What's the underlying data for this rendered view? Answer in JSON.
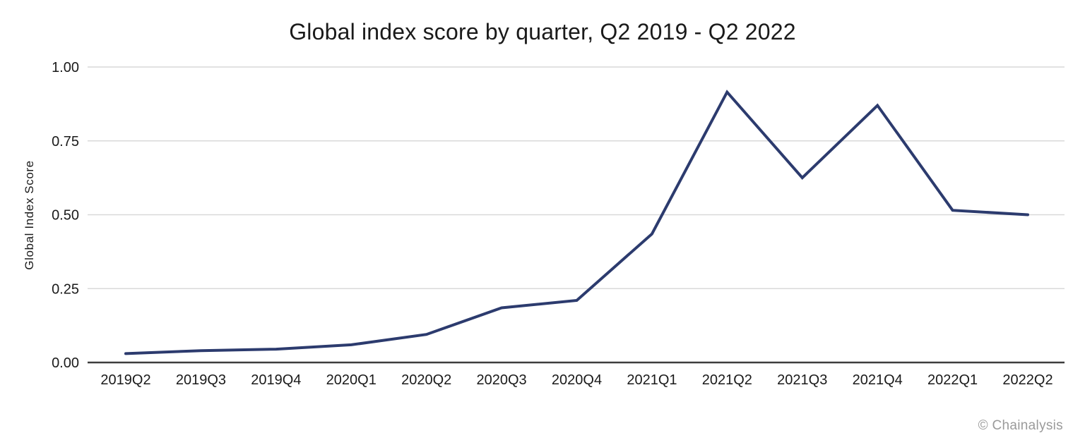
{
  "title": "Global index score by quarter, Q2 2019 - Q2 2022",
  "watermark": "© Chainalysis",
  "chart_data": {
    "type": "line",
    "title": "Global index score by quarter, Q2 2019 - Q2 2022",
    "xlabel": "",
    "ylabel": "Global Index Score",
    "x": [
      "2019Q2",
      "2019Q3",
      "2019Q4",
      "2020Q1",
      "2020Q2",
      "2020Q3",
      "2020Q4",
      "2021Q1",
      "2021Q2",
      "2021Q3",
      "2021Q4",
      "2022Q1",
      "2022Q2"
    ],
    "values": [
      0.03,
      0.04,
      0.045,
      0.06,
      0.095,
      0.185,
      0.21,
      0.435,
      0.915,
      0.625,
      0.87,
      0.515,
      0.5
    ],
    "ylim": [
      0,
      1
    ],
    "yticks": [
      "0.00",
      "0.25",
      "0.50",
      "0.75",
      "1.00"
    ],
    "ytick_values": [
      0,
      0.25,
      0.5,
      0.75,
      1.0
    ],
    "grid": true,
    "legend": false,
    "colors": {
      "line": "#2c3b6e",
      "grid": "#d9d9d9",
      "axis": "#3d3d3d",
      "text": "#1a1a1a",
      "watermark": "#9a9a9a"
    }
  }
}
